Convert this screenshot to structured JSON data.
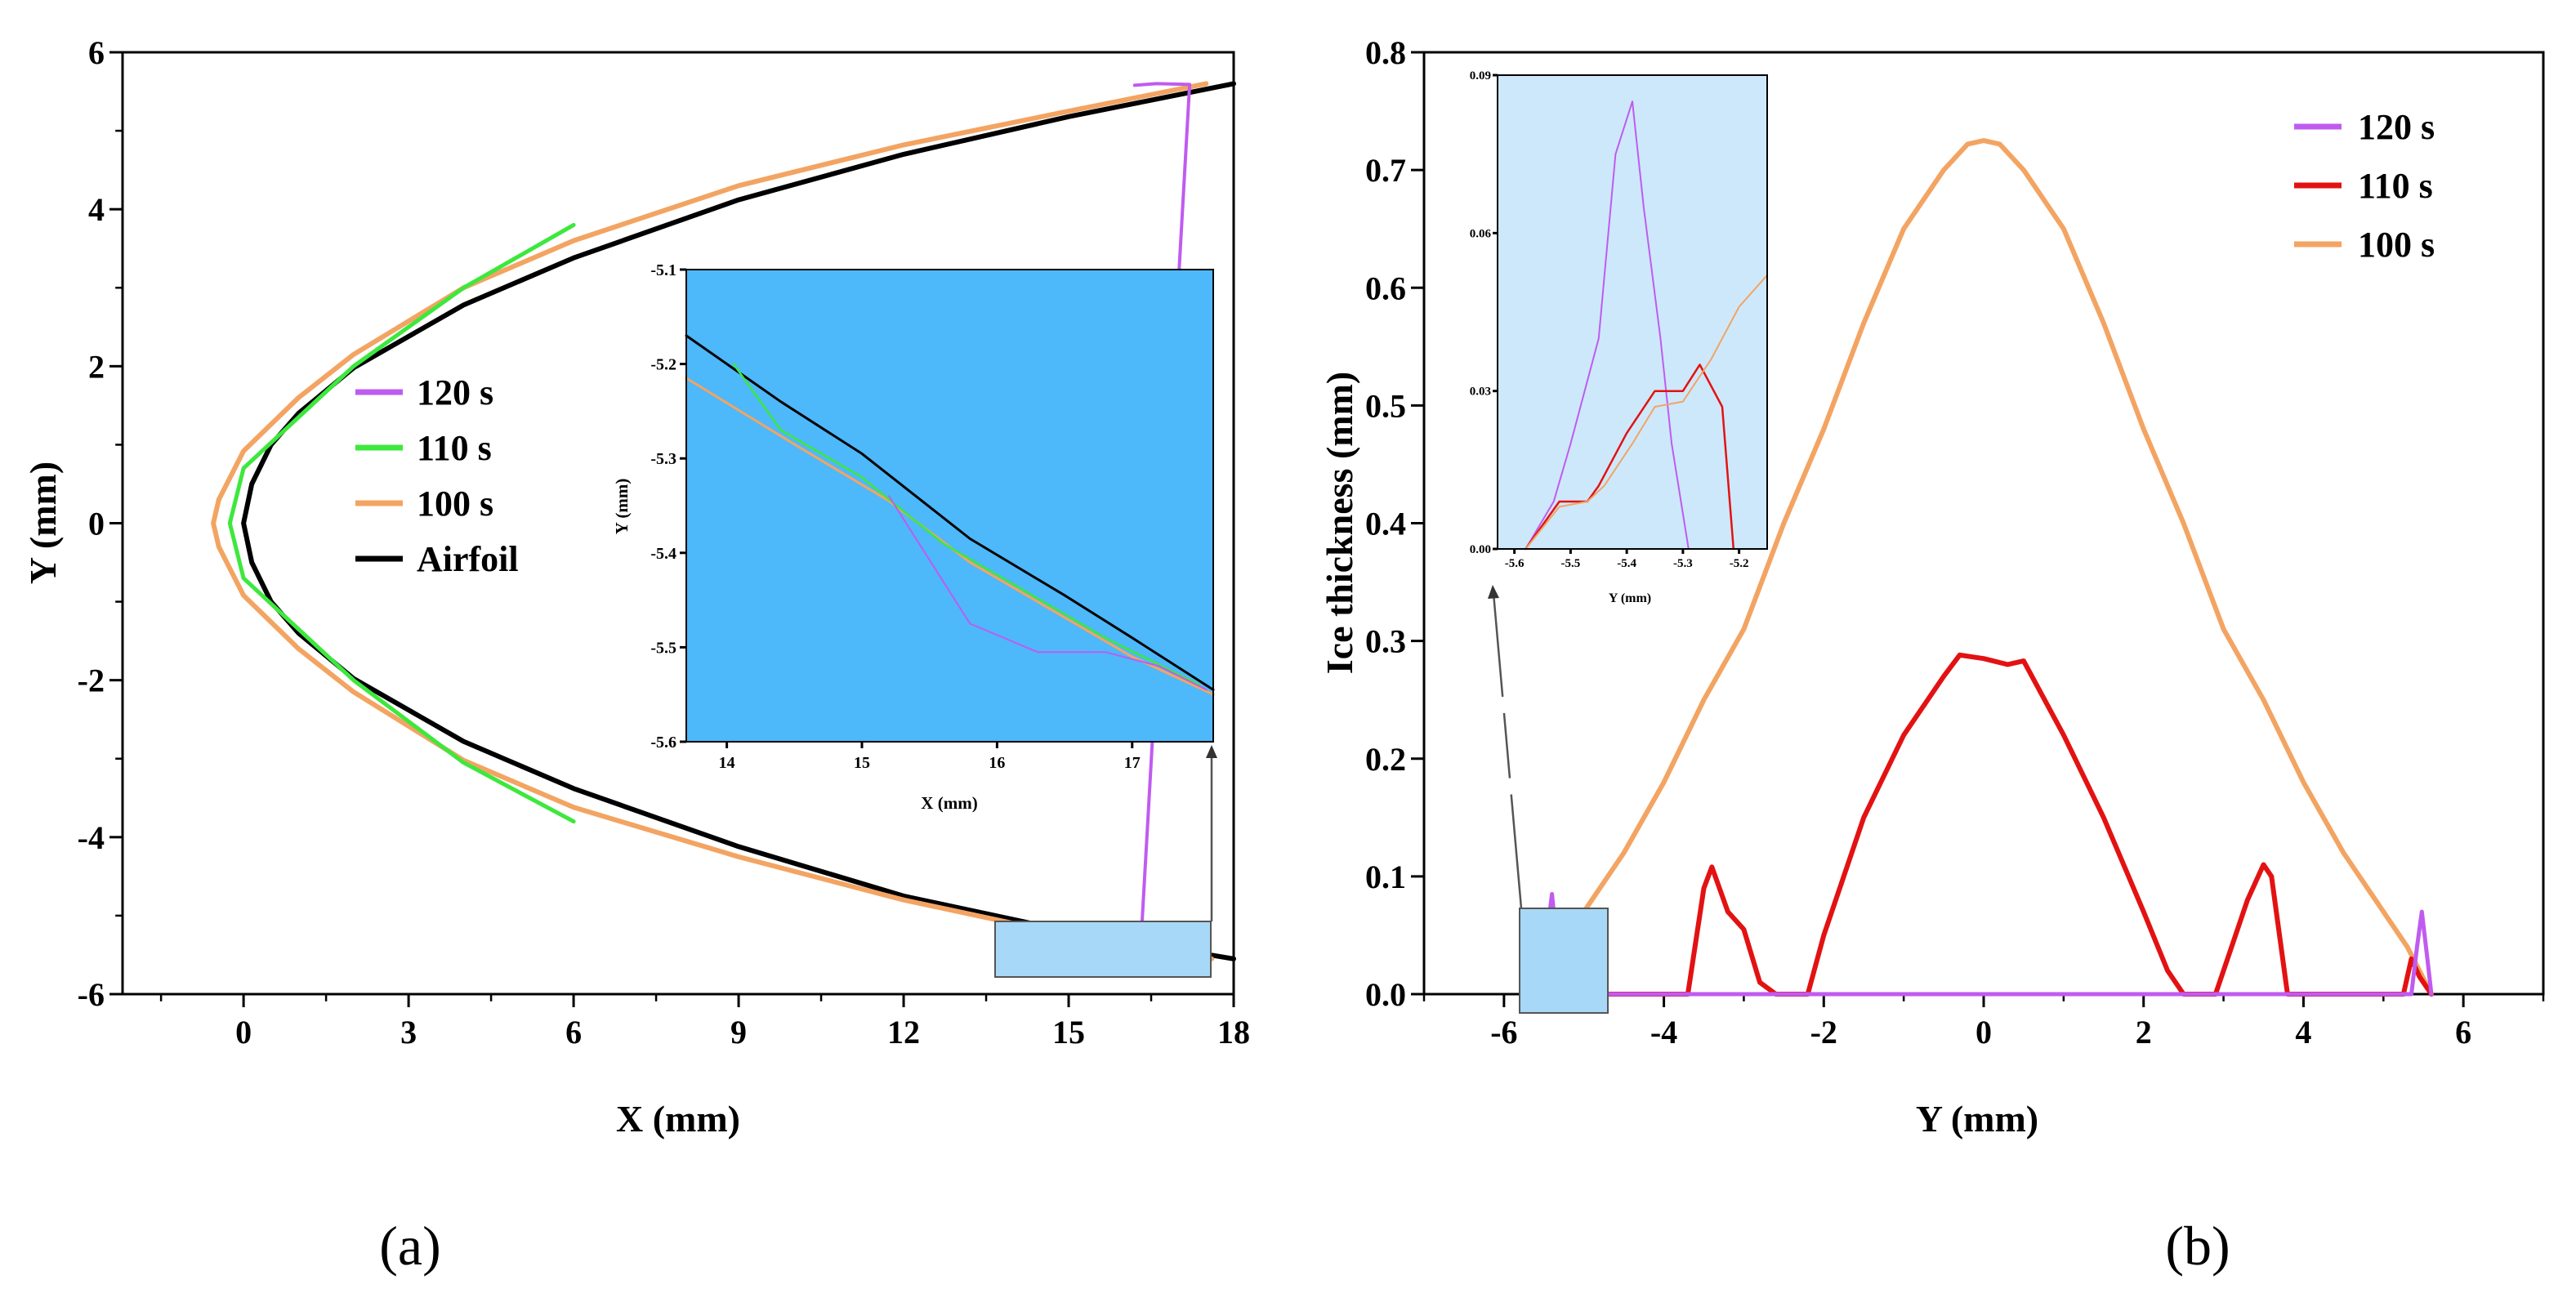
{
  "colors": {
    "s120": "#c05bf0",
    "s110_a": "#3de83d",
    "s110_b": "#e31212",
    "s100": "#f3a462",
    "airfoil": "#000000",
    "inset_a_bg": "#4db8fa",
    "inset_b_bg": "#cde8fb",
    "highlight_box": "#a8d8f7"
  },
  "panel_labels": {
    "a": "(a)",
    "b": "(b)"
  },
  "chart_data": [
    {
      "id": "a",
      "type": "line",
      "xlabel": "X (mm)",
      "ylabel": "Y (mm)",
      "xlim": [
        -2.2,
        18
      ],
      "ylim": [
        -6,
        6
      ],
      "xticks": [
        0,
        3,
        6,
        9,
        12,
        15,
        18
      ],
      "yticks": [
        -6,
        -4,
        -2,
        0,
        2,
        4,
        6
      ],
      "legend": {
        "placement": "center-left",
        "entries": [
          "120 s",
          "110 s",
          "100 s",
          "Airfoil"
        ]
      },
      "series": [
        {
          "name": "Airfoil",
          "color_key": "airfoil",
          "points": [
            [
              18,
              5.6
            ],
            [
              15,
              5.18
            ],
            [
              12,
              4.7
            ],
            [
              9,
              4.12
            ],
            [
              6,
              3.38
            ],
            [
              4,
              2.78
            ],
            [
              2,
              1.98
            ],
            [
              1,
              1.4
            ],
            [
              0.5,
              1.0
            ],
            [
              0.15,
              0.5
            ],
            [
              0,
              0
            ],
            [
              0.15,
              -0.5
            ],
            [
              0.5,
              -1.0
            ],
            [
              1,
              -1.4
            ],
            [
              2,
              -1.98
            ],
            [
              4,
              -2.78
            ],
            [
              6,
              -3.38
            ],
            [
              9,
              -4.12
            ],
            [
              12,
              -4.75
            ],
            [
              15,
              -5.2
            ],
            [
              18,
              -5.55
            ]
          ]
        },
        {
          "name": "100 s",
          "color_key": "s100",
          "points": [
            [
              17.5,
              5.6
            ],
            [
              15,
              5.25
            ],
            [
              12,
              4.82
            ],
            [
              9,
              4.3
            ],
            [
              6,
              3.6
            ],
            [
              4,
              3.0
            ],
            [
              2,
              2.15
            ],
            [
              1,
              1.6
            ],
            [
              0,
              0.92
            ],
            [
              -0.45,
              0.3
            ],
            [
              -0.55,
              0
            ],
            [
              -0.45,
              -0.3
            ],
            [
              0,
              -0.92
            ],
            [
              1,
              -1.6
            ],
            [
              2,
              -2.15
            ],
            [
              4,
              -3.02
            ],
            [
              6,
              -3.62
            ],
            [
              9,
              -4.25
            ],
            [
              12,
              -4.8
            ],
            [
              15,
              -5.25
            ],
            [
              17.6,
              -5.55
            ]
          ]
        },
        {
          "name": "110 s",
          "color_key": "s110_a",
          "points": [
            [
              6,
              3.8
            ],
            [
              4,
              3.0
            ],
            [
              2,
              2.0
            ],
            [
              1,
              1.35
            ],
            [
              0,
              0.7
            ],
            [
              -0.25,
              0
            ],
            [
              0,
              -0.7
            ],
            [
              1,
              -1.35
            ],
            [
              2,
              -2.0
            ],
            [
              4,
              -3.05
            ],
            [
              6,
              -3.8
            ]
          ]
        },
        {
          "name": "120 s",
          "color_key": "s120",
          "points": [
            [
              16.2,
              5.58
            ],
            [
              16.6,
              5.6
            ],
            [
              17.2,
              5.59
            ],
            [
              16.3,
              -5.52
            ],
            [
              16.9,
              -5.55
            ],
            [
              17.3,
              -5.52
            ]
          ]
        }
      ],
      "inset": {
        "xlabel": "X (mm)",
        "ylabel": "Y (mm)",
        "xlim": [
          13.7,
          17.6
        ],
        "ylim": [
          -5.6,
          -5.1
        ],
        "xticks": [
          14,
          15,
          16,
          17
        ],
        "yticks": [
          -5.1,
          -5.2,
          -5.3,
          -5.4,
          -5.5,
          -5.6
        ],
        "series": [
          {
            "name": "Airfoil",
            "color_key": "airfoil",
            "points": [
              [
                13.7,
                -5.17
              ],
              [
                14.4,
                -5.24
              ],
              [
                15.0,
                -5.295
              ],
              [
                15.8,
                -5.385
              ],
              [
                16.5,
                -5.445
              ],
              [
                17.0,
                -5.49
              ],
              [
                17.6,
                -5.545
              ]
            ]
          },
          {
            "name": "100 s",
            "color_key": "s100",
            "points": [
              [
                13.7,
                -5.215
              ],
              [
                14.5,
                -5.285
              ],
              [
                15.2,
                -5.345
              ],
              [
                15.8,
                -5.41
              ],
              [
                16.4,
                -5.46
              ],
              [
                17.0,
                -5.51
              ],
              [
                17.6,
                -5.55
              ]
            ]
          },
          {
            "name": "110 s",
            "color_key": "s110_a",
            "points": [
              [
                14.05,
                -5.2
              ],
              [
                14.4,
                -5.27
              ],
              [
                15.0,
                -5.32
              ],
              [
                15.6,
                -5.39
              ],
              [
                16.2,
                -5.44
              ],
              [
                16.8,
                -5.49
              ],
              [
                17.5,
                -5.54
              ]
            ]
          },
          {
            "name": "120 s",
            "color_key": "s120",
            "points": [
              [
                15.2,
                -5.34
              ],
              [
                15.8,
                -5.475
              ],
              [
                16.3,
                -5.505
              ],
              [
                16.8,
                -5.505
              ],
              [
                17.2,
                -5.52
              ],
              [
                17.55,
                -5.545
              ]
            ]
          }
        ]
      }
    },
    {
      "id": "b",
      "type": "line",
      "xlabel": "Y (mm)",
      "ylabel": "Ice thickness (mm)",
      "xlim": [
        -7,
        7
      ],
      "ylim": [
        0,
        0.8
      ],
      "xticks": [
        -6,
        -4,
        -2,
        0,
        2,
        4,
        6
      ],
      "yticks": [
        0.0,
        0.1,
        0.2,
        0.3,
        0.4,
        0.5,
        0.6,
        0.7,
        0.8
      ],
      "legend": {
        "placement": "top-right",
        "entries": [
          "120 s",
          "110 s",
          "100 s"
        ]
      },
      "series": [
        {
          "name": "100 s",
          "color_key": "s100",
          "points": [
            [
              -5.6,
              0
            ],
            [
              -5.3,
              0.04
            ],
            [
              -5.0,
              0.07
            ],
            [
              -4.5,
              0.12
            ],
            [
              -4.0,
              0.18
            ],
            [
              -3.5,
              0.25
            ],
            [
              -3.0,
              0.31
            ],
            [
              -2.5,
              0.4
            ],
            [
              -2.0,
              0.48
            ],
            [
              -1.5,
              0.57
            ],
            [
              -1.0,
              0.65
            ],
            [
              -0.5,
              0.7
            ],
            [
              -0.2,
              0.722
            ],
            [
              0,
              0.725
            ],
            [
              0.2,
              0.722
            ],
            [
              0.5,
              0.7
            ],
            [
              1.0,
              0.65
            ],
            [
              1.5,
              0.57
            ],
            [
              2.0,
              0.48
            ],
            [
              2.5,
              0.4
            ],
            [
              3.0,
              0.31
            ],
            [
              3.5,
              0.25
            ],
            [
              4.0,
              0.18
            ],
            [
              4.5,
              0.12
            ],
            [
              5.0,
              0.07
            ],
            [
              5.3,
              0.04
            ],
            [
              5.6,
              0
            ]
          ]
        },
        {
          "name": "110 s",
          "color_key": "s110_b",
          "points": [
            [
              -5.6,
              0
            ],
            [
              -5.45,
              0.015
            ],
            [
              -5.35,
              0.03
            ],
            [
              -5.22,
              0
            ],
            [
              -3.7,
              0
            ],
            [
              -3.5,
              0.09
            ],
            [
              -3.4,
              0.108
            ],
            [
              -3.2,
              0.07
            ],
            [
              -3.0,
              0.055
            ],
            [
              -2.8,
              0.01
            ],
            [
              -2.6,
              0
            ],
            [
              -2.2,
              0
            ],
            [
              -2.0,
              0.05
            ],
            [
              -1.5,
              0.15
            ],
            [
              -1.0,
              0.22
            ],
            [
              -0.5,
              0.27
            ],
            [
              -0.3,
              0.288
            ],
            [
              0,
              0.285
            ],
            [
              0.3,
              0.28
            ],
            [
              0.5,
              0.283
            ],
            [
              1.0,
              0.22
            ],
            [
              1.5,
              0.15
            ],
            [
              2.0,
              0.07
            ],
            [
              2.3,
              0.02
            ],
            [
              2.5,
              0
            ],
            [
              2.9,
              0
            ],
            [
              3.1,
              0.04
            ],
            [
              3.3,
              0.08
            ],
            [
              3.5,
              0.11
            ],
            [
              3.6,
              0.1
            ],
            [
              3.8,
              0
            ],
            [
              5.25,
              0
            ],
            [
              5.35,
              0.03
            ],
            [
              5.45,
              0.015
            ],
            [
              5.6,
              0
            ]
          ]
        },
        {
          "name": "120 s",
          "color_key": "s120",
          "points": [
            [
              -5.58,
              0
            ],
            [
              -5.5,
              0.03
            ],
            [
              -5.4,
              0.085
            ],
            [
              -5.35,
              0.05
            ],
            [
              -5.3,
              0
            ],
            [
              5.35,
              0
            ],
            [
              5.42,
              0.04
            ],
            [
              5.48,
              0.07
            ],
            [
              5.55,
              0.03
            ],
            [
              5.6,
              0
            ]
          ]
        }
      ],
      "inset": {
        "xlabel": "Y (mm)",
        "ylabel": "",
        "xlim": [
          -5.63,
          -5.15
        ],
        "ylim": [
          0,
          0.09
        ],
        "xticks": [
          -5.6,
          -5.5,
          -5.4,
          -5.3,
          -5.2
        ],
        "yticks": [
          0.0,
          0.03,
          0.06,
          0.09
        ],
        "series": [
          {
            "name": "120 s",
            "color_key": "s120",
            "points": [
              [
                -5.58,
                0
              ],
              [
                -5.53,
                0.009
              ],
              [
                -5.5,
                0.02
              ],
              [
                -5.45,
                0.04
              ],
              [
                -5.42,
                0.075
              ],
              [
                -5.39,
                0.085
              ],
              [
                -5.37,
                0.065
              ],
              [
                -5.34,
                0.04
              ],
              [
                -5.32,
                0.02
              ],
              [
                -5.29,
                0
              ]
            ]
          },
          {
            "name": "110 s",
            "color_key": "s110_b",
            "points": [
              [
                -5.58,
                0
              ],
              [
                -5.52,
                0.009
              ],
              [
                -5.47,
                0.009
              ],
              [
                -5.45,
                0.012
              ],
              [
                -5.4,
                0.022
              ],
              [
                -5.35,
                0.03
              ],
              [
                -5.3,
                0.03
              ],
              [
                -5.27,
                0.035
              ],
              [
                -5.23,
                0.027
              ],
              [
                -5.21,
                0
              ]
            ]
          },
          {
            "name": "100 s",
            "color_key": "s100",
            "points": [
              [
                -5.58,
                0
              ],
              [
                -5.52,
                0.008
              ],
              [
                -5.47,
                0.009
              ],
              [
                -5.44,
                0.012
              ],
              [
                -5.39,
                0.02
              ],
              [
                -5.35,
                0.027
              ],
              [
                -5.3,
                0.028
              ],
              [
                -5.25,
                0.036
              ],
              [
                -5.2,
                0.046
              ],
              [
                -5.15,
                0.052
              ]
            ]
          }
        ]
      }
    }
  ]
}
